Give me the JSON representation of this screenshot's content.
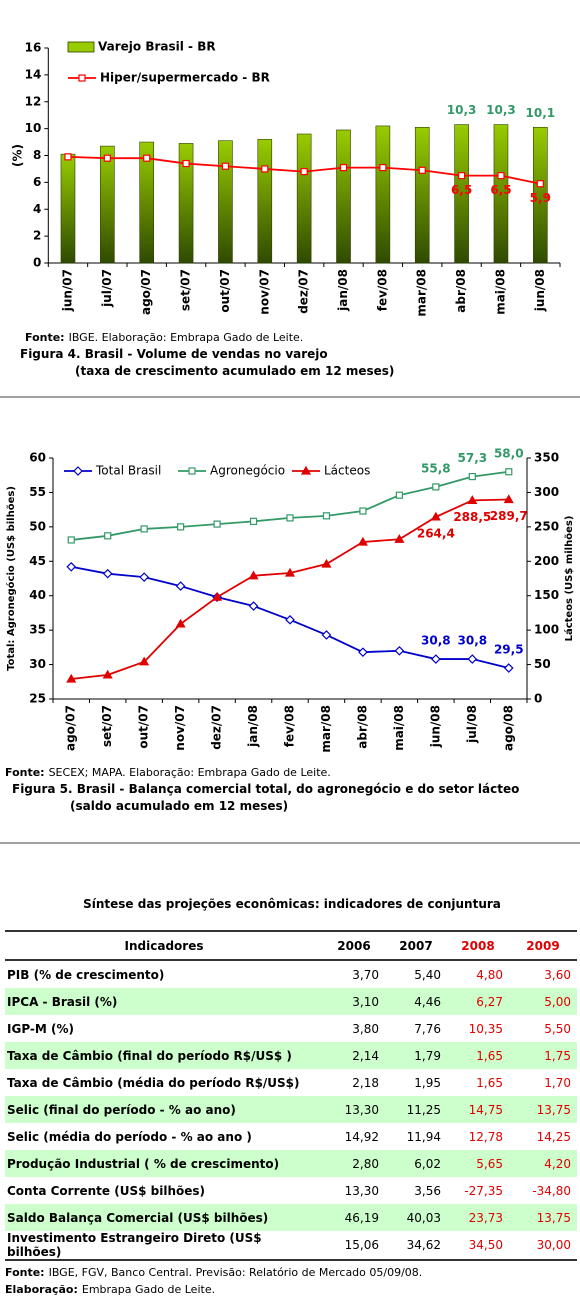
{
  "chart_data": [
    {
      "type": "bar",
      "ylabel": "(%)",
      "categories": [
        "jun/07",
        "jul/07",
        "ago/07",
        "set/07",
        "out/07",
        "nov/07",
        "dez/07",
        "jan/08",
        "fev/08",
        "mar/08",
        "abr/08",
        "mai/08",
        "jun/08"
      ],
      "ylim": [
        0,
        16
      ],
      "yticks": [
        0,
        2,
        4,
        6,
        8,
        10,
        12,
        14,
        16
      ],
      "legend": "top-left",
      "series": [
        {
          "name": "Varejo Brasil - BR",
          "type": "bar",
          "color": "#99cc00",
          "label_color": "#339966",
          "values": [
            8.1,
            8.7,
            9.0,
            8.9,
            9.1,
            9.2,
            9.6,
            9.9,
            10.2,
            10.1,
            10.3,
            10.3,
            10.1
          ],
          "value_labels": [
            null,
            null,
            null,
            null,
            null,
            null,
            null,
            null,
            null,
            null,
            "10,3",
            "10,3",
            "10,1"
          ]
        },
        {
          "name": "Hiper/supermercado - BR",
          "type": "line",
          "color": "#ff0000",
          "marker": "square",
          "values": [
            7.9,
            7.8,
            7.8,
            7.4,
            7.2,
            7.0,
            6.8,
            7.1,
            7.1,
            6.9,
            6.5,
            6.5,
            5.9
          ],
          "value_labels": [
            null,
            null,
            null,
            null,
            null,
            null,
            null,
            null,
            null,
            null,
            "6,5",
            "6,5",
            "5,9"
          ]
        }
      ]
    },
    {
      "type": "line",
      "ylabel": "Total: Agronegócio (US$ bilhões)",
      "y2label": "Lácteos (US$ milhões)",
      "categories": [
        "ago/07",
        "set/07",
        "out/07",
        "nov/07",
        "dez/07",
        "jan/08",
        "fev/08",
        "mar/08",
        "abr/08",
        "mai/08",
        "jun/08",
        "jul/08",
        "ago/08"
      ],
      "ylim": [
        25,
        60
      ],
      "yticks": [
        25,
        30,
        35,
        40,
        45,
        50,
        55,
        60
      ],
      "y2lim": [
        0,
        350
      ],
      "y2ticks": [
        0,
        50,
        100,
        150,
        200,
        250,
        300,
        350
      ],
      "legend": "top",
      "series": [
        {
          "name": "Total Brasil",
          "color": "#0000cc",
          "marker": "diamond",
          "values": [
            44.2,
            43.2,
            42.7,
            41.4,
            39.8,
            38.5,
            36.5,
            34.3,
            31.8,
            32.0,
            30.8,
            30.8,
            29.5
          ],
          "value_labels": [
            null,
            null,
            null,
            null,
            null,
            null,
            null,
            null,
            null,
            null,
            "30,8",
            "30,8",
            "29,5"
          ]
        },
        {
          "name": "Agronegócio",
          "color": "#339966",
          "marker": "square",
          "values": [
            48.1,
            48.7,
            49.7,
            50.0,
            50.4,
            50.8,
            51.3,
            51.6,
            52.3,
            54.6,
            55.8,
            57.3,
            58.0
          ],
          "value_labels": [
            null,
            null,
            null,
            null,
            null,
            null,
            null,
            null,
            null,
            null,
            "55,8",
            "57,3",
            "58,0"
          ]
        },
        {
          "name": "Lácteos",
          "color": "#e00000",
          "marker": "triangle",
          "axis": "y2",
          "values": [
            29,
            35,
            54,
            109,
            148,
            179,
            183,
            196,
            228,
            232,
            264.4,
            288.5,
            289.7
          ],
          "value_labels": [
            null,
            null,
            null,
            null,
            null,
            null,
            null,
            null,
            null,
            null,
            "264,4",
            "288,5",
            "289,7"
          ]
        }
      ]
    }
  ],
  "figures": [
    {
      "source_label": "Fonte:",
      "source": "IBGE. Elaboração: Embrapa Gado de Leite.",
      "caption": "Figura 4. Brasil - Volume de vendas no varejo",
      "subcaption": "(taxa de crescimento acumulado em 12 meses)"
    },
    {
      "source_label": "Fonte:",
      "source": "SECEX; MAPA. Elaboração: Embrapa Gado de Leite.",
      "caption": "Figura 5. Brasil - Balança comercial total, do agronegócio e do setor lácteo",
      "subcaption": "(saldo acumulado em 12 meses)"
    }
  ],
  "table": {
    "title": "Síntese das projeções econômicas: indicadores de conjuntura",
    "header": [
      "Indicadores",
      "2006",
      "2007",
      "2008",
      "2009"
    ],
    "rows": [
      [
        "PIB (% de crescimento)",
        "3,70",
        "5,40",
        "4,80",
        "3,60"
      ],
      [
        "IPCA - Brasil (%)",
        "3,10",
        "4,46",
        "6,27",
        "5,00"
      ],
      [
        "IGP-M (%)",
        "3,80",
        "7,76",
        "10,35",
        "5,50"
      ],
      [
        "Taxa de Câmbio (final do período R$/US$ )",
        "2,14",
        "1,79",
        "1,65",
        "1,75"
      ],
      [
        "Taxa de Câmbio (média do período R$/US$)",
        "2,18",
        "1,95",
        "1,65",
        "1,70"
      ],
      [
        "Selic (final do período - % ao ano)",
        "13,30",
        "11,25",
        "14,75",
        "13,75"
      ],
      [
        "Selic (média do período - % ao ano )",
        "14,92",
        "11,94",
        "12,78",
        "14,25"
      ],
      [
        "Produção Industrial ( % de crescimento)",
        "2,80",
        "6,02",
        "5,65",
        "4,20"
      ],
      [
        "Conta Corrente (US$ bilhões)",
        "13,30",
        "3,56",
        "-27,35",
        "-34,80"
      ],
      [
        "Saldo Balança Comercial (US$ bilhões)",
        "46,19",
        "40,03",
        "23,73",
        "13,75"
      ],
      [
        "Investimento Estrangeiro Direto (US$ bilhões)",
        "15,06",
        "34,62",
        "34,50",
        "30,00"
      ]
    ]
  },
  "footer": {
    "source_label": "Fonte:",
    "source": "IBGE, FGV, Banco Central. Previsão: Relatório de Mercado 05/09/08.",
    "credit_label": "Elaboração:",
    "credit": "Embrapa Gado de Leite."
  }
}
